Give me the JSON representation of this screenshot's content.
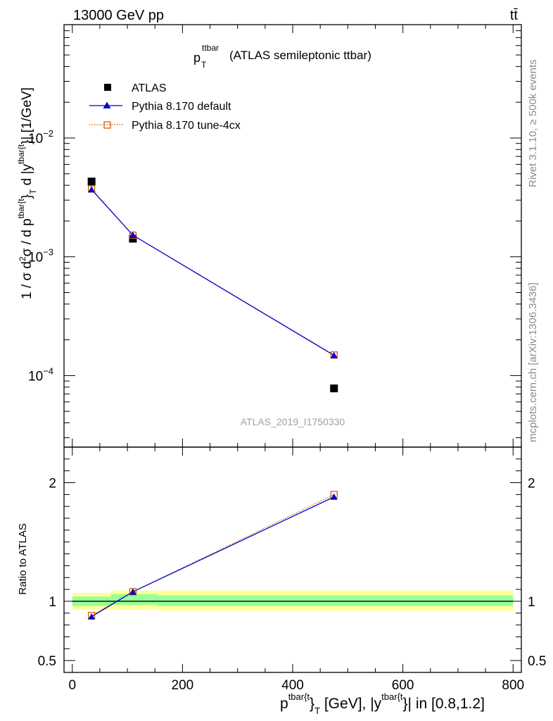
{
  "header": {
    "energy": "13000 GeV pp",
    "process": "tt̄"
  },
  "side": {
    "rivet": "Rivet 3.1.10, ≥ 500k events",
    "mcplots": "mcplots.cern.ch [arXiv:1306.3436]"
  },
  "chart_data": [
    {
      "type": "scatter",
      "title": "p_T^ttbar (ATLAS semileptonic ttbar)",
      "title_main": "p",
      "title_sub": "T",
      "title_sup": "ttbar",
      "title_rest": "(ATLAS semileptonic ttbar)",
      "watermark": "ATLAS_2019_I1750330",
      "ylabel": "1 / σ d²σ / d p^tbar{t}_T d |y^tbar{t}| [1/GeV]",
      "ylabel_parts": [
        "1 / σ d",
        "2",
        "σ / d p",
        "tbar{t",
        "}",
        "T",
        " d |y",
        "tbar{t",
        "}| [1/GeV]"
      ],
      "yscale": "log",
      "ylim": [
        2.5e-05,
        0.09
      ],
      "yticks": [
        {
          "value": 0.0001,
          "base": "10",
          "exp": "−4"
        },
        {
          "value": 0.001,
          "base": "10",
          "exp": "−3"
        },
        {
          "value": 0.01,
          "base": "10",
          "exp": "−2"
        }
      ],
      "xlim": [
        -15,
        815
      ],
      "legend": {
        "placement": "top-left",
        "entries": [
          {
            "label": "ATLAS",
            "marker": "square",
            "color": "#000000"
          },
          {
            "label": "Pythia 8.170 default",
            "marker": "triangle",
            "color": "#0000cc"
          },
          {
            "label": "Pythia 8.170 tune-4cx",
            "marker": "open-square",
            "color": "#cc5500"
          }
        ]
      },
      "series": [
        {
          "name": "ATLAS",
          "x": [
            35,
            110,
            475
          ],
          "y": [
            0.0043,
            0.00142,
            7.8e-05
          ]
        },
        {
          "name": "Pythia 8.170 default",
          "x": [
            35,
            110,
            475
          ],
          "y": [
            0.00368,
            0.00152,
            0.000148
          ]
        },
        {
          "name": "Pythia 8.170 tune-4cx",
          "x": [
            35,
            110,
            475
          ],
          "y": [
            0.00372,
            0.00152,
            0.000149
          ]
        }
      ]
    },
    {
      "type": "line",
      "ylabel": "Ratio to ATLAS",
      "ylim": [
        0.4,
        2.3
      ],
      "yticks": [
        {
          "value": 0.5,
          "label": "0.5"
        },
        {
          "value": 1,
          "label": "1"
        },
        {
          "value": 2,
          "label": "2"
        }
      ],
      "xlim": [
        -15,
        815
      ],
      "xticks": [
        {
          "value": 0,
          "label": "0"
        },
        {
          "value": 200,
          "label": "200"
        },
        {
          "value": 400,
          "label": "400"
        },
        {
          "value": 600,
          "label": "600"
        },
        {
          "value": 800,
          "label": "800"
        }
      ],
      "xlabel": "p^tbar{t}_T [GeV], |y^tbar{t}| in [0.8,1.2]",
      "xlabel_parts": [
        "p",
        "tbar{t",
        "}",
        "T",
        " [GeV], |y",
        "tbar{t",
        "}| in [0.8,1.2]"
      ],
      "bands": [
        {
          "x": [
            0,
            70
          ],
          "yellow": [
            0.93,
            1.07
          ],
          "green": [
            0.96,
            1.04
          ]
        },
        {
          "x": [
            70,
            155
          ],
          "yellow": [
            0.93,
            1.09
          ],
          "green": [
            0.97,
            1.06
          ]
        },
        {
          "x": [
            155,
            800
          ],
          "yellow": [
            0.92,
            1.09
          ],
          "green": [
            0.96,
            1.05
          ]
        }
      ],
      "series": [
        {
          "name": "Pythia 8.170 default",
          "x": [
            35,
            110,
            475
          ],
          "y": [
            0.87,
            1.08,
            1.88
          ]
        },
        {
          "name": "Pythia 8.170 tune-4cx",
          "x": [
            35,
            110,
            475
          ],
          "y": [
            0.88,
            1.08,
            1.9
          ]
        }
      ]
    }
  ]
}
